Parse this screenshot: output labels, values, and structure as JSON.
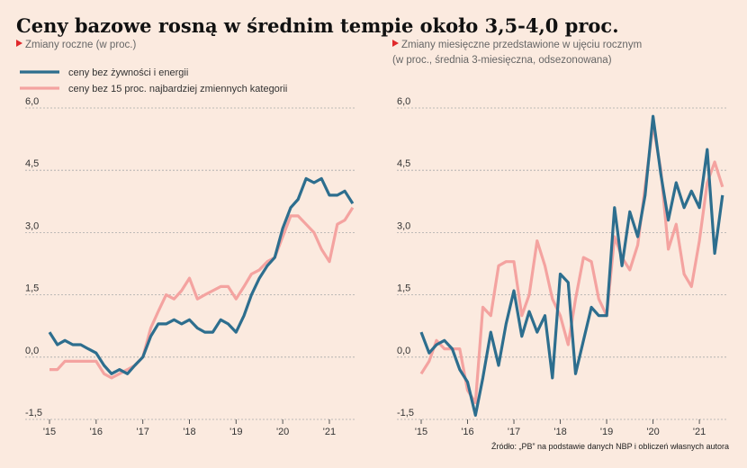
{
  "title": "Ceny bazowe rosną w średnim tempie około 3,5-4,0 proc.",
  "source": "Źródło: „PB” na podstawie danych NBP i obliczeń własnych autora",
  "chart_data": [
    {
      "type": "line",
      "subtitle": "Zmiany roczne (w proc.)",
      "x": [
        2015.0,
        2015.17,
        2015.33,
        2015.5,
        2015.67,
        2015.83,
        2016.0,
        2016.17,
        2016.33,
        2016.5,
        2016.67,
        2016.83,
        2017.0,
        2017.17,
        2017.33,
        2017.5,
        2017.67,
        2017.83,
        2018.0,
        2018.17,
        2018.33,
        2018.5,
        2018.67,
        2018.83,
        2019.0,
        2019.17,
        2019.33,
        2019.5,
        2019.67,
        2019.83,
        2020.0,
        2020.17,
        2020.33,
        2020.5,
        2020.67,
        2020.83,
        2021.0,
        2021.17,
        2021.33,
        2021.5
      ],
      "xlim": [
        2015,
        2021.56
      ],
      "xticks": [
        {
          "value": 2015,
          "label": "'15"
        },
        {
          "value": 2016,
          "label": "'16"
        },
        {
          "value": 2017,
          "label": "'17"
        },
        {
          "value": 2018,
          "label": "'18"
        },
        {
          "value": 2019,
          "label": "'19"
        },
        {
          "value": 2020,
          "label": "'20"
        },
        {
          "value": 2021,
          "label": "'21"
        }
      ],
      "ylim": [
        -1.5,
        6
      ],
      "yticks": [
        {
          "value": -1.5,
          "label": "-1,5"
        },
        {
          "value": 0,
          "label": "0,0"
        },
        {
          "value": 1.5,
          "label": "1,5"
        },
        {
          "value": 3,
          "label": "3,0"
        },
        {
          "value": 4.5,
          "label": "4,5"
        },
        {
          "value": 6,
          "label": "6,0"
        }
      ],
      "grid": true,
      "legend": "top-left",
      "series": [
        {
          "name": "ceny bez 15 proc. najbardziej zmiennych kategorii",
          "color": "#f4a3a0",
          "values": [
            -0.3,
            -0.3,
            -0.1,
            -0.1,
            -0.1,
            -0.1,
            -0.1,
            -0.4,
            -0.5,
            -0.4,
            -0.3,
            -0.2,
            0.0,
            0.7,
            1.1,
            1.5,
            1.4,
            1.6,
            1.9,
            1.4,
            1.5,
            1.6,
            1.7,
            1.7,
            1.4,
            1.7,
            2.0,
            2.1,
            2.3,
            2.4,
            2.9,
            3.4,
            3.4,
            3.2,
            3.0,
            2.6,
            2.3,
            3.2,
            3.3,
            3.6
          ]
        },
        {
          "name": "ceny bez żywności i energii",
          "color": "#2d6e8e",
          "values": [
            0.6,
            0.3,
            0.4,
            0.3,
            0.3,
            0.2,
            0.1,
            -0.2,
            -0.4,
            -0.3,
            -0.4,
            -0.2,
            0.0,
            0.5,
            0.8,
            0.8,
            0.9,
            0.8,
            0.9,
            0.7,
            0.6,
            0.6,
            0.9,
            0.8,
            0.6,
            1.0,
            1.5,
            1.9,
            2.2,
            2.4,
            3.1,
            3.6,
            3.8,
            4.3,
            4.2,
            4.3,
            3.9,
            3.9,
            4.0,
            3.7
          ]
        }
      ]
    },
    {
      "type": "line",
      "subtitle": "Zmiany miesięczne przedstawione w ujęciu rocznym",
      "subtitle_note": "(w proc., średnia 3-miesięczna, odsezonowana)",
      "x": [
        2015.0,
        2015.17,
        2015.33,
        2015.5,
        2015.67,
        2015.83,
        2016.0,
        2016.17,
        2016.33,
        2016.5,
        2016.67,
        2016.83,
        2017.0,
        2017.17,
        2017.33,
        2017.5,
        2017.67,
        2017.83,
        2018.0,
        2018.17,
        2018.33,
        2018.5,
        2018.67,
        2018.83,
        2019.0,
        2019.17,
        2019.33,
        2019.5,
        2019.67,
        2019.83,
        2020.0,
        2020.17,
        2020.33,
        2020.5,
        2020.67,
        2020.83,
        2021.0,
        2021.17,
        2021.33,
        2021.5
      ],
      "xlim": [
        2015,
        2021.6
      ],
      "xticks": [
        {
          "value": 2015,
          "label": "'15"
        },
        {
          "value": 2016,
          "label": "'16"
        },
        {
          "value": 2017,
          "label": "'17"
        },
        {
          "value": 2018,
          "label": "'18"
        },
        {
          "value": 2019,
          "label": "'19"
        },
        {
          "value": 2020,
          "label": "'20"
        },
        {
          "value": 2021,
          "label": "'21"
        }
      ],
      "ylim": [
        -1.5,
        6
      ],
      "yticks": [
        {
          "value": -1.5,
          "label": "-1,5"
        },
        {
          "value": 0,
          "label": "0,0"
        },
        {
          "value": 1.5,
          "label": "1,5"
        },
        {
          "value": 3,
          "label": "3,0"
        },
        {
          "value": 4.5,
          "label": "4,5"
        },
        {
          "value": 6,
          "label": "6,0"
        }
      ],
      "grid": true,
      "series": [
        {
          "color": "#f4a3a0",
          "values": [
            -0.4,
            -0.1,
            0.4,
            0.2,
            0.2,
            0.2,
            -0.8,
            -1.1,
            1.2,
            1.0,
            2.2,
            2.3,
            2.3,
            1.0,
            1.5,
            2.8,
            2.2,
            1.4,
            1.0,
            0.3,
            1.4,
            2.4,
            2.3,
            1.4,
            1.0,
            2.9,
            2.4,
            2.1,
            2.7,
            4.1,
            5.6,
            4.5,
            2.6,
            3.2,
            2.0,
            1.7,
            2.8,
            4.2,
            4.7,
            4.1
          ]
        },
        {
          "color": "#2d6e8e",
          "values": [
            0.6,
            0.1,
            0.3,
            0.4,
            0.2,
            -0.3,
            -0.6,
            -1.4,
            -0.5,
            0.6,
            -0.2,
            0.8,
            1.6,
            0.5,
            1.1,
            0.6,
            1.0,
            -0.5,
            2.0,
            1.8,
            -0.4,
            0.4,
            1.2,
            1.0,
            1.0,
            3.6,
            2.2,
            3.5,
            2.9,
            3.9,
            5.8,
            4.4,
            3.3,
            4.2,
            3.6,
            4.0,
            3.6,
            5.0,
            2.5,
            3.9
          ]
        }
      ]
    }
  ]
}
